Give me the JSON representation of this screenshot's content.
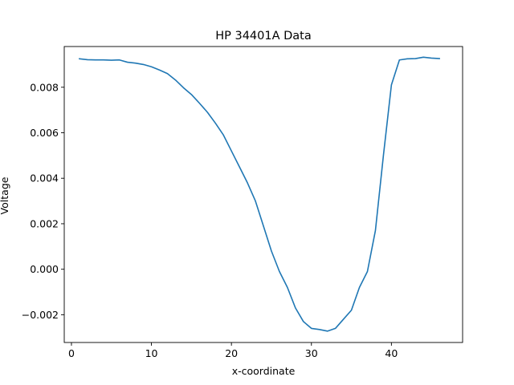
{
  "chart_data": {
    "type": "line",
    "title": "HP 34401A Data",
    "xlabel": "x-coordinate",
    "ylabel": "Voltage",
    "xlim": [
      -0.9,
      48.9
    ],
    "ylim": [
      -0.00322,
      0.00979
    ],
    "xticks": [
      0,
      10,
      20,
      30,
      40
    ],
    "xtick_labels": [
      "0",
      "10",
      "20",
      "30",
      "40"
    ],
    "yticks": [
      -0.002,
      0.0,
      0.002,
      0.004,
      0.006,
      0.008
    ],
    "ytick_labels": [
      "−0.002",
      "0.000",
      "0.002",
      "0.004",
      "0.006",
      "0.008"
    ],
    "grid": false,
    "series": [
      {
        "color": "#1f77b4",
        "x": [
          1,
          2,
          3,
          4,
          5,
          6,
          7,
          8,
          9,
          10,
          11,
          12,
          13,
          14,
          15,
          16,
          17,
          18,
          19,
          20,
          21,
          22,
          23,
          24,
          25,
          26,
          27,
          28,
          29,
          30,
          31,
          32,
          33,
          34,
          35,
          36,
          37,
          38,
          39,
          40,
          41,
          42,
          43,
          44,
          45,
          46
        ],
        "y": [
          0.00925,
          0.00921,
          0.0092,
          0.0092,
          0.00919,
          0.0092,
          0.0091,
          0.00906,
          0.009,
          0.0089,
          0.00876,
          0.0086,
          0.00832,
          0.00798,
          0.00768,
          0.0073,
          0.0069,
          0.00642,
          0.0059,
          0.0052,
          0.0045,
          0.0038,
          0.003,
          0.0019,
          0.0008,
          -0.0001,
          -0.0008,
          -0.0017,
          -0.0023,
          -0.0026,
          -0.00265,
          -0.00272,
          -0.0026,
          -0.0022,
          -0.0018,
          -0.0008,
          -0.0001,
          0.0017,
          0.005,
          0.0081,
          0.0092,
          0.00925,
          0.00926,
          0.00932,
          0.00928,
          0.00926
        ]
      }
    ]
  }
}
